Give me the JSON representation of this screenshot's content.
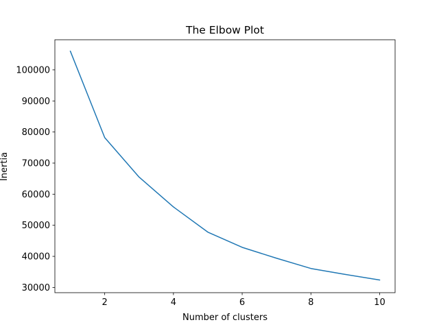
{
  "chart_data": {
    "type": "line",
    "title": "The Elbow Plot",
    "xlabel": "Number of clusters",
    "ylabel": "Inertia",
    "x": [
      1,
      2,
      3,
      4,
      5,
      6,
      7,
      8,
      9,
      10
    ],
    "series": [
      {
        "values": [
          106000,
          78200,
          65500,
          55900,
          47800,
          42900,
          39400,
          36100,
          34200,
          32400
        ],
        "color": "#1f77b4"
      }
    ],
    "xlim": [
      0.55,
      10.45
    ],
    "ylim": [
      28320,
      109680
    ],
    "xticks": [
      2,
      4,
      6,
      8,
      10
    ],
    "xtick_labels": [
      "2",
      "4",
      "6",
      "8",
      "10"
    ],
    "yticks": [
      30000,
      40000,
      50000,
      60000,
      70000,
      80000,
      90000,
      100000
    ],
    "ytick_labels": [
      "30000",
      "40000",
      "50000",
      "60000",
      "70000",
      "80000",
      "90000",
      "100000"
    ],
    "grid": false,
    "legend": "none"
  }
}
